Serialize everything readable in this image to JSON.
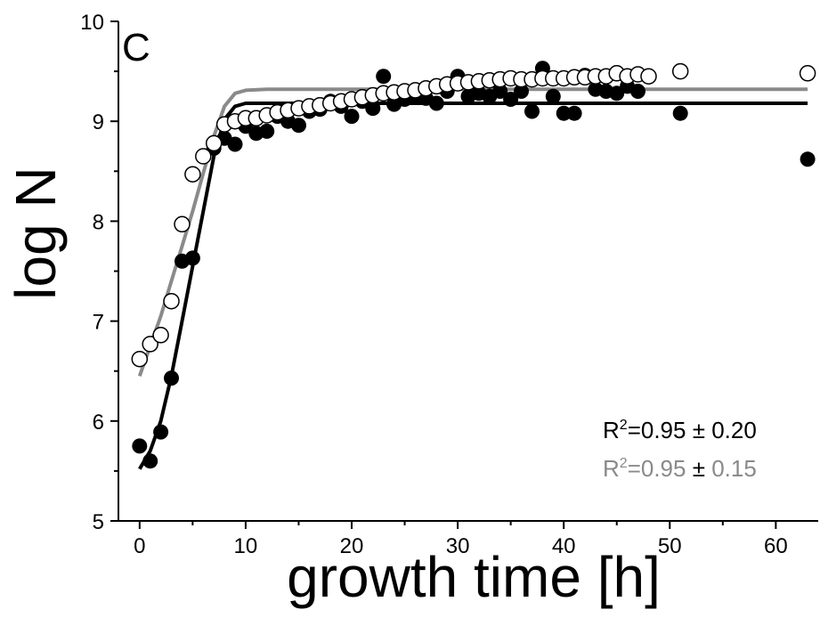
{
  "chart_data": {
    "type": "scatter",
    "panel_label": "C",
    "xlabel": "growth time [h]",
    "ylabel": "log N",
    "xlim": [
      -2,
      64
    ],
    "ylim": [
      5,
      10
    ],
    "xticks": [
      0,
      10,
      20,
      30,
      40,
      50,
      60
    ],
    "yticks": [
      5,
      6,
      7,
      8,
      9,
      10
    ],
    "grid": false,
    "colors": {
      "filled": "#000000",
      "open_stroke": "#000000",
      "open_fill": "#ffffff",
      "fit_black": "#000000",
      "fit_gray": "#8a8a8a"
    },
    "series": [
      {
        "marker": "filled-circle",
        "color": "#000000",
        "points": [
          [
            0,
            5.75
          ],
          [
            1,
            5.6
          ],
          [
            2,
            5.89
          ],
          [
            3,
            6.43
          ],
          [
            4,
            7.6
          ],
          [
            5,
            7.63
          ],
          [
            6,
            8.65
          ],
          [
            7,
            8.73
          ],
          [
            8,
            8.83
          ],
          [
            9,
            8.77
          ],
          [
            10,
            8.95
          ],
          [
            11,
            8.88
          ],
          [
            12,
            8.9
          ],
          [
            13,
            9.05
          ],
          [
            14,
            9.0
          ],
          [
            15,
            8.96
          ],
          [
            16,
            9.1
          ],
          [
            17,
            9.12
          ],
          [
            18,
            9.2
          ],
          [
            19,
            9.15
          ],
          [
            20,
            9.05
          ],
          [
            21,
            9.2
          ],
          [
            22,
            9.13
          ],
          [
            23,
            9.45
          ],
          [
            24,
            9.17
          ],
          [
            25,
            9.22
          ],
          [
            26,
            9.25
          ],
          [
            27,
            9.23
          ],
          [
            28,
            9.18
          ],
          [
            29,
            9.3
          ],
          [
            30,
            9.45
          ],
          [
            31,
            9.25
          ],
          [
            32,
            9.28
          ],
          [
            33,
            9.25
          ],
          [
            34,
            9.3
          ],
          [
            35,
            9.22
          ],
          [
            36,
            9.3
          ],
          [
            37,
            9.1
          ],
          [
            38,
            9.53
          ],
          [
            39,
            9.25
          ],
          [
            40,
            9.08
          ],
          [
            41,
            9.08
          ],
          [
            42,
            9.46
          ],
          [
            43,
            9.32
          ],
          [
            44,
            9.3
          ],
          [
            45,
            9.28
          ],
          [
            46,
            9.35
          ],
          [
            47,
            9.3
          ],
          [
            51,
            9.08
          ],
          [
            63,
            8.62
          ]
        ]
      },
      {
        "marker": "open-circle",
        "color": "#000000",
        "points": [
          [
            0,
            6.62
          ],
          [
            1,
            6.77
          ],
          [
            2,
            6.86
          ],
          [
            3,
            7.2
          ],
          [
            4,
            7.97
          ],
          [
            5,
            8.47
          ],
          [
            6,
            8.65
          ],
          [
            7,
            8.78
          ],
          [
            8,
            8.97
          ],
          [
            9,
            9.0
          ],
          [
            10,
            9.03
          ],
          [
            11,
            9.03
          ],
          [
            12,
            9.06
          ],
          [
            13,
            9.09
          ],
          [
            14,
            9.11
          ],
          [
            15,
            9.13
          ],
          [
            16,
            9.15
          ],
          [
            17,
            9.16
          ],
          [
            18,
            9.18
          ],
          [
            19,
            9.2
          ],
          [
            20,
            9.22
          ],
          [
            21,
            9.24
          ],
          [
            22,
            9.26
          ],
          [
            23,
            9.28
          ],
          [
            24,
            9.29
          ],
          [
            25,
            9.3
          ],
          [
            26,
            9.31
          ],
          [
            27,
            9.33
          ],
          [
            28,
            9.35
          ],
          [
            29,
            9.37
          ],
          [
            30,
            9.38
          ],
          [
            31,
            9.39
          ],
          [
            32,
            9.4
          ],
          [
            33,
            9.41
          ],
          [
            34,
            9.42
          ],
          [
            35,
            9.43
          ],
          [
            36,
            9.42
          ],
          [
            37,
            9.42
          ],
          [
            38,
            9.43
          ],
          [
            39,
            9.43
          ],
          [
            40,
            9.43
          ],
          [
            41,
            9.44
          ],
          [
            42,
            9.44
          ],
          [
            43,
            9.45
          ],
          [
            44,
            9.45
          ],
          [
            45,
            9.48
          ],
          [
            46,
            9.45
          ],
          [
            47,
            9.47
          ],
          [
            48,
            9.45
          ],
          [
            51,
            9.5
          ],
          [
            63,
            9.48
          ]
        ]
      },
      {
        "marker": "line",
        "color": "#000000",
        "points": [
          [
            0,
            5.52
          ],
          [
            1,
            5.7
          ],
          [
            2,
            6.0
          ],
          [
            3,
            6.45
          ],
          [
            4,
            7.0
          ],
          [
            5,
            7.55
          ],
          [
            6,
            8.1
          ],
          [
            7,
            8.65
          ],
          [
            8,
            9.02
          ],
          [
            9,
            9.15
          ],
          [
            10,
            9.18
          ],
          [
            63,
            9.18
          ]
        ]
      },
      {
        "marker": "line",
        "color": "#8a8a8a",
        "points": [
          [
            0,
            6.45
          ],
          [
            1,
            6.75
          ],
          [
            2,
            7.05
          ],
          [
            3,
            7.4
          ],
          [
            4,
            7.75
          ],
          [
            5,
            8.1
          ],
          [
            6,
            8.48
          ],
          [
            7,
            8.85
          ],
          [
            8,
            9.15
          ],
          [
            9,
            9.28
          ],
          [
            10,
            9.31
          ],
          [
            12,
            9.32
          ],
          [
            63,
            9.32
          ]
        ]
      }
    ],
    "annotations": [
      {
        "text_main": "R",
        "text_sup": "2",
        "text_rest": "=0.95 ± 0.20",
        "color": "#000000"
      },
      {
        "text_main": "R",
        "text_sup": "2",
        "text_rest": "=0.95 ",
        "text_pm": "±",
        "text_end": " 0.15",
        "color": "#8a8a8a"
      }
    ]
  }
}
